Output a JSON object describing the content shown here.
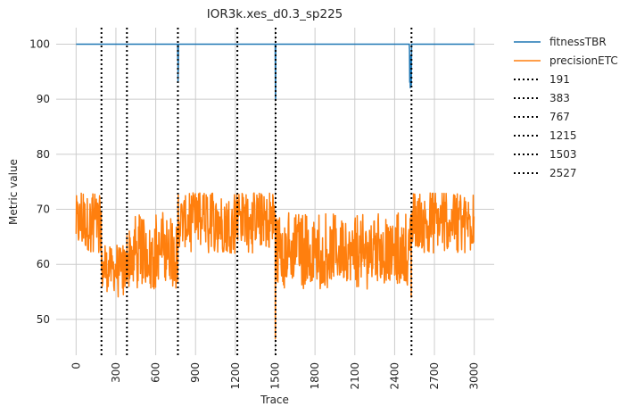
{
  "chart_data": {
    "type": "line",
    "title": "IOR3k.xes_d0.3_sp225",
    "xlabel": "Trace",
    "ylabel": "Metric value",
    "xlim": [
      -150,
      3150
    ],
    "ylim": [
      43.5,
      103.0
    ],
    "x_ticks": [
      0,
      300,
      600,
      900,
      1200,
      1500,
      1800,
      2100,
      2400,
      2700,
      3000
    ],
    "y_ticks": [
      50,
      60,
      70,
      80,
      90,
      100
    ],
    "grid": true,
    "legend_position": "outside-right",
    "colors": {
      "fitness": "#1f77b4",
      "precision": "#ff7f0e",
      "drift": "#000000"
    },
    "series": [
      {
        "name": "fitnessTBR",
        "baseline": 100,
        "x": [
          0,
          765,
          766,
          767,
          768,
          769,
          770,
          771,
          772,
          1500,
          1501,
          1502,
          1503,
          1504,
          2510,
          2512,
          2514,
          2516,
          2518,
          2520,
          2522,
          2524,
          2526,
          2528,
          3000
        ],
        "values": [
          100,
          100,
          97,
          100,
          93,
          99,
          95,
          100,
          100,
          100,
          95,
          91,
          90,
          100,
          100,
          99,
          93,
          96,
          92,
          98,
          92.5,
          94,
          92.5,
          100,
          100
        ]
      },
      {
        "name": "precisionETC",
        "segments": [
          {
            "x_start": 0,
            "x_end": 191,
            "low": 62.5,
            "high": 72.5,
            "min": 62,
            "max": 73
          },
          {
            "x_start": 191,
            "x_end": 383,
            "low": 55,
            "high": 63,
            "min": 53.5,
            "max": 63.5
          },
          {
            "x_start": 383,
            "x_end": 767,
            "low": 57,
            "high": 67,
            "min": 55.5,
            "max": 69.5
          },
          {
            "x_start": 767,
            "x_end": 1215,
            "low": 63,
            "high": 72.5,
            "min": 62,
            "max": 73
          },
          {
            "x_start": 1215,
            "x_end": 1503,
            "low": 64,
            "high": 72.5,
            "min": 62,
            "max": 73
          },
          {
            "x_start": 1503,
            "x_end": 2527,
            "low": 57,
            "high": 67,
            "min": 55.5,
            "max": 69.5
          },
          {
            "x_start": 2527,
            "x_end": 3000,
            "low": 63,
            "high": 72.5,
            "min": 62,
            "max": 73
          }
        ],
        "spikes": [
          {
            "x": 1501,
            "value": 46.5
          },
          {
            "x": 2525,
            "value": 54
          }
        ]
      }
    ],
    "drift_points": [
      191,
      383,
      767,
      1215,
      1503,
      2527
    ],
    "legend": {
      "fitness": "fitnessTBR",
      "precision": "precisionETC",
      "drifts": [
        "191",
        "383",
        "767",
        "1215",
        "1503",
        "2527"
      ]
    }
  }
}
